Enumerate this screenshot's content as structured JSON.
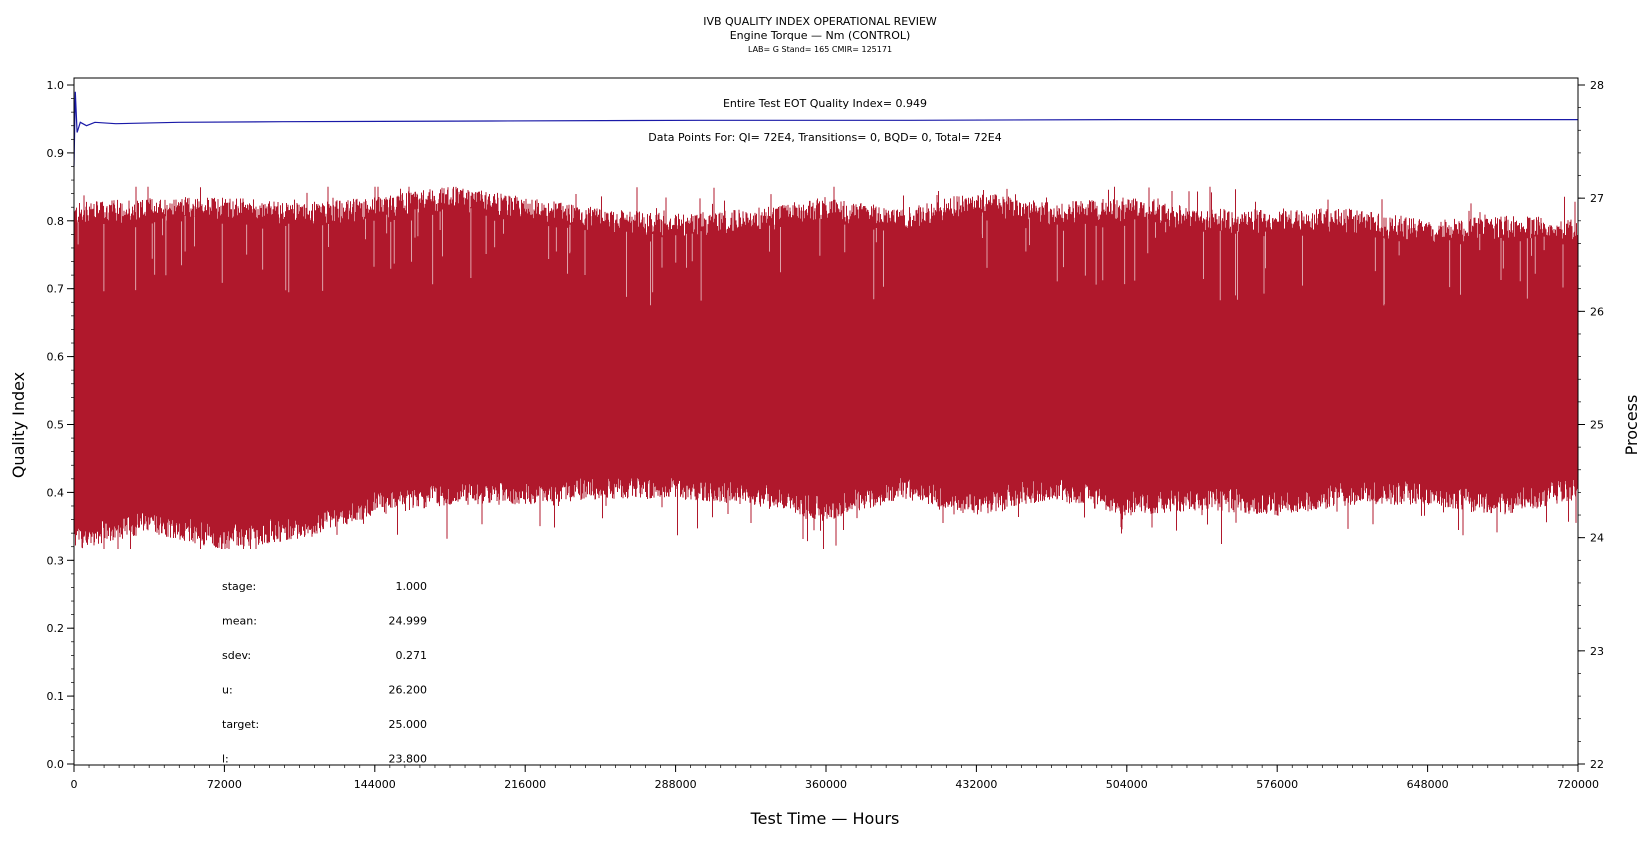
{
  "chart_data": {
    "type": "line",
    "title": "IVB QUALITY INDEX OPERATIONAL REVIEW",
    "subtitle": "Engine Torque — Nm (CONTROL)",
    "subsubtitle": "LAB= G Stand= 165 CMIR= 125171",
    "xlabel": "Test Time — Hours",
    "ylabel_left": "Quality Index",
    "ylabel_right": "Process",
    "xlim": [
      0,
      720000
    ],
    "ylim_left": [
      0,
      1.0
    ],
    "ylim_right": [
      22,
      28
    ],
    "x_ticks": [
      "0",
      "72000",
      "144000",
      "216000",
      "288000",
      "360000",
      "432000",
      "504000",
      "576000",
      "648000",
      "720000"
    ],
    "y_ticks_left": [
      "0.0",
      "0.1",
      "0.2",
      "0.3",
      "0.4",
      "0.5",
      "0.6",
      "0.7",
      "0.8",
      "0.9",
      "1.0"
    ],
    "y_ticks_right": [
      "22",
      "23",
      "24",
      "25",
      "26",
      "27",
      "28"
    ],
    "annotations": {
      "quality_index": "Entire Test EOT Quality Index=   0.949",
      "data_points": "Data Points For: QI=  72E4, Transitions=     0, BQD=     0, Total=  72E4"
    },
    "series": [
      {
        "name": "Quality Index",
        "axis": "left",
        "color": "#1a1aa8",
        "points": [
          [
            0,
            0.88
          ],
          [
            600,
            0.99
          ],
          [
            1500,
            0.93
          ],
          [
            3000,
            0.945
          ],
          [
            6000,
            0.94
          ],
          [
            10000,
            0.945
          ],
          [
            20000,
            0.943
          ],
          [
            50000,
            0.945
          ],
          [
            100000,
            0.946
          ],
          [
            200000,
            0.947
          ],
          [
            300000,
            0.948
          ],
          [
            400000,
            0.948
          ],
          [
            500000,
            0.949
          ],
          [
            600000,
            0.949
          ],
          [
            720000,
            0.949
          ]
        ]
      },
      {
        "name": "Process",
        "axis": "right",
        "color": "#b0182c",
        "x": [
          0,
          36000,
          72000,
          108000,
          144000,
          180000,
          216000,
          252000,
          288000,
          324000,
          360000,
          396000,
          432000,
          468000,
          504000,
          540000,
          576000,
          612000,
          648000,
          684000,
          720000
        ],
        "upper": [
          26.85,
          26.9,
          26.9,
          26.85,
          26.9,
          27.0,
          26.9,
          26.8,
          26.75,
          26.8,
          26.9,
          26.8,
          26.95,
          26.85,
          26.9,
          26.8,
          26.8,
          26.8,
          26.7,
          26.75,
          26.7
        ],
        "lower": [
          24.0,
          24.15,
          24.0,
          24.1,
          24.3,
          24.4,
          24.4,
          24.45,
          24.45,
          24.4,
          24.25,
          24.45,
          24.3,
          24.45,
          24.3,
          24.35,
          24.3,
          24.4,
          24.4,
          24.3,
          24.45
        ],
        "spike_max": 27.1,
        "spike_min": 23.9
      }
    ],
    "stats": [
      {
        "label": "stage:",
        "value": "1.000"
      },
      {
        "label": "mean:",
        "value": "24.999"
      },
      {
        "label": "sdev:",
        "value": "0.271"
      },
      {
        "label": "u:",
        "value": "26.200"
      },
      {
        "label": "target:",
        "value": "25.000"
      },
      {
        "label": "l:",
        "value": "23.800"
      }
    ]
  }
}
